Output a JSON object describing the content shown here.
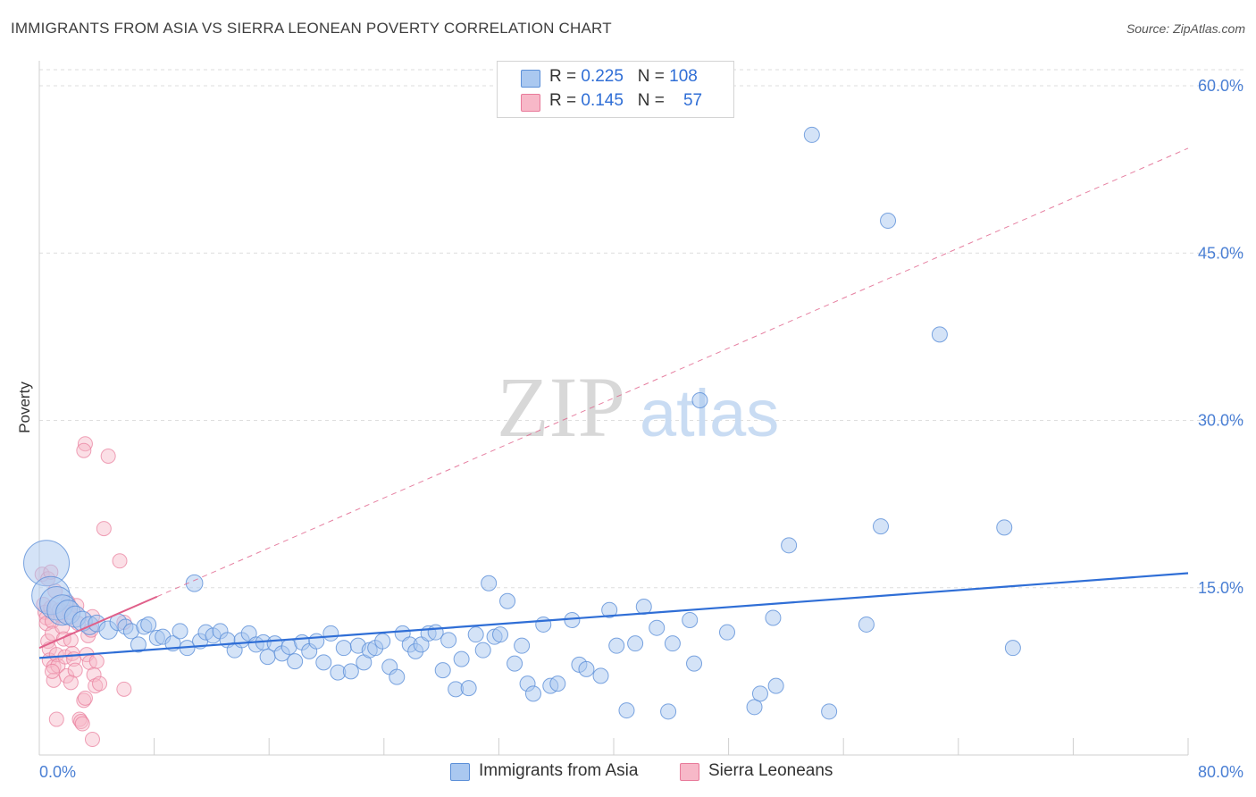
{
  "title": "IMMIGRANTS FROM ASIA VS SIERRA LEONEAN POVERTY CORRELATION CHART",
  "source": "Source: ZipAtlas.com",
  "watermark": {
    "zip": "ZIP",
    "atlas": "atlas"
  },
  "legend_top": {
    "row1": {
      "r_label": "R = ",
      "r_value": "0.225",
      "n_label": "N = ",
      "n_value": "108"
    },
    "row2": {
      "r_label": "R = ",
      "r_value": "0.145",
      "n_label": "N = ",
      "n_value": "57"
    }
  },
  "legend_bottom": {
    "series1": "Immigrants from Asia",
    "series2": "Sierra Leoneans"
  },
  "colors": {
    "blue_fill": "#aac8f0",
    "blue_stroke": "#5b8fd8",
    "blue_line": "#2f6ed6",
    "pink_fill": "#f7b8c8",
    "pink_stroke": "#e87a9a",
    "pink_line": "#e0608a",
    "tick_text": "#4a7fd4"
  },
  "chart_data": {
    "type": "scatter",
    "title": "IMMIGRANTS FROM ASIA VS SIERRA LEONEAN POVERTY CORRELATION CHART",
    "xlabel": "",
    "ylabel": "Poverty",
    "xlim": [
      0,
      80
    ],
    "ylim": [
      0,
      60
    ],
    "x_tick_labels": [
      "0.0%",
      "80.0%"
    ],
    "y_ticks": [
      15,
      30,
      45,
      60
    ],
    "y_tick_labels": [
      "15.0%",
      "30.0%",
      "45.0%",
      "60.0%"
    ],
    "series": [
      {
        "name": "Immigrants from Asia",
        "r": 0.225,
        "n": 108,
        "trend": {
          "x": [
            0,
            80
          ],
          "y": [
            8.7,
            16.3
          ],
          "style": "solid"
        },
        "points": [
          [
            0.5,
            17.2,
            3
          ],
          [
            0.8,
            14.3,
            2.5
          ],
          [
            1.2,
            13.6,
            2.2
          ],
          [
            1.6,
            13.0,
            2
          ],
          [
            2.0,
            12.8,
            1.6
          ],
          [
            2.5,
            12.4,
            1.4
          ],
          [
            3.0,
            12.0,
            1.3
          ],
          [
            3.5,
            11.6,
            1.2
          ],
          [
            4.0,
            11.8,
            1.1
          ],
          [
            4.8,
            11.2,
            1.2
          ],
          [
            5.5,
            11.9,
            1.1
          ],
          [
            6.0,
            11.5,
            1
          ],
          [
            6.4,
            11.1,
            1
          ],
          [
            6.9,
            9.9,
            1
          ],
          [
            7.3,
            11.5,
            1
          ],
          [
            7.6,
            11.7,
            1
          ],
          [
            8.2,
            10.5,
            1
          ],
          [
            8.6,
            10.6,
            1
          ],
          [
            9.3,
            10.0,
            1
          ],
          [
            9.8,
            11.1,
            1
          ],
          [
            10.3,
            9.6,
            1
          ],
          [
            10.8,
            15.4,
            1.1
          ],
          [
            11.2,
            10.2,
            1
          ],
          [
            11.6,
            11.0,
            1
          ],
          [
            12.1,
            10.7,
            1
          ],
          [
            12.6,
            11.1,
            1
          ],
          [
            13.1,
            10.3,
            1
          ],
          [
            13.6,
            9.4,
            1
          ],
          [
            14.1,
            10.3,
            1
          ],
          [
            14.6,
            10.9,
            1
          ],
          [
            15.1,
            9.9,
            1
          ],
          [
            15.6,
            10.1,
            1
          ],
          [
            15.9,
            8.8,
            1
          ],
          [
            16.4,
            10.0,
            1
          ],
          [
            16.9,
            9.1,
            1
          ],
          [
            17.4,
            9.7,
            1
          ],
          [
            17.8,
            8.4,
            1
          ],
          [
            18.3,
            10.1,
            1
          ],
          [
            18.8,
            9.3,
            1
          ],
          [
            19.3,
            10.2,
            1
          ],
          [
            19.8,
            8.3,
            1
          ],
          [
            20.3,
            10.9,
            1
          ],
          [
            20.8,
            7.4,
            1
          ],
          [
            21.2,
            9.6,
            1
          ],
          [
            21.7,
            7.5,
            1
          ],
          [
            22.2,
            9.8,
            1
          ],
          [
            22.6,
            8.3,
            1
          ],
          [
            23.0,
            9.4,
            1
          ],
          [
            23.4,
            9.6,
            1
          ],
          [
            23.9,
            10.2,
            1
          ],
          [
            24.4,
            7.9,
            1
          ],
          [
            24.9,
            7.0,
            1
          ],
          [
            25.3,
            10.9,
            1
          ],
          [
            25.8,
            9.9,
            1
          ],
          [
            26.2,
            9.3,
            1
          ],
          [
            26.6,
            9.9,
            1
          ],
          [
            27.1,
            10.9,
            1
          ],
          [
            27.6,
            11.0,
            1
          ],
          [
            28.1,
            7.6,
            1
          ],
          [
            28.5,
            10.3,
            1
          ],
          [
            29.0,
            5.9,
            1
          ],
          [
            29.4,
            8.6,
            1
          ],
          [
            29.9,
            6.0,
            1
          ],
          [
            30.4,
            10.8,
            1
          ],
          [
            30.9,
            9.4,
            1
          ],
          [
            31.3,
            15.4,
            1
          ],
          [
            31.7,
            10.6,
            1
          ],
          [
            32.1,
            10.8,
            1
          ],
          [
            32.6,
            13.8,
            1
          ],
          [
            33.1,
            8.2,
            1
          ],
          [
            33.6,
            9.8,
            1
          ],
          [
            34.0,
            6.4,
            1
          ],
          [
            34.4,
            5.5,
            1
          ],
          [
            35.1,
            11.7,
            1
          ],
          [
            35.6,
            6.2,
            1
          ],
          [
            36.1,
            6.4,
            1
          ],
          [
            37.1,
            12.1,
            1
          ],
          [
            37.6,
            8.1,
            1
          ],
          [
            38.1,
            7.7,
            1
          ],
          [
            39.1,
            7.1,
            1
          ],
          [
            39.7,
            13.0,
            1
          ],
          [
            40.2,
            9.8,
            1
          ],
          [
            40.9,
            4.0,
            1
          ],
          [
            41.5,
            10.0,
            1
          ],
          [
            42.1,
            13.3,
            1
          ],
          [
            43.0,
            11.4,
            1
          ],
          [
            43.8,
            3.9,
            1
          ],
          [
            44.1,
            10.0,
            1
          ],
          [
            45.3,
            12.1,
            1
          ],
          [
            45.6,
            8.2,
            1
          ],
          [
            46.0,
            31.8,
            1
          ],
          [
            47.9,
            11.0,
            1
          ],
          [
            49.8,
            4.3,
            1
          ],
          [
            50.2,
            5.5,
            1
          ],
          [
            51.1,
            12.3,
            1
          ],
          [
            51.3,
            6.2,
            1
          ],
          [
            52.2,
            18.8,
            1
          ],
          [
            53.8,
            55.6,
            1
          ],
          [
            55.0,
            3.9,
            1
          ],
          [
            57.6,
            11.7,
            1
          ],
          [
            58.6,
            20.5,
            1
          ],
          [
            59.1,
            47.9,
            1
          ],
          [
            62.7,
            37.7,
            1
          ],
          [
            67.2,
            20.4,
            1
          ],
          [
            67.8,
            9.6,
            1
          ]
        ]
      },
      {
        "name": "Sierra Leoneans",
        "r": 0.145,
        "n": 57,
        "trend_solid": {
          "x": [
            0,
            8.2
          ],
          "y": [
            9.6,
            14.2
          ]
        },
        "trend_dashed": {
          "x": [
            8.2,
            80
          ],
          "y": [
            14.2,
            54.4
          ]
        },
        "points": [
          [
            0.2,
            16.2
          ],
          [
            0.3,
            13.5
          ],
          [
            0.4,
            12.8
          ],
          [
            0.5,
            12.3
          ],
          [
            0.5,
            11.8
          ],
          [
            0.6,
            15.8
          ],
          [
            0.6,
            10.2
          ],
          [
            0.7,
            9.5
          ],
          [
            0.7,
            8.5
          ],
          [
            0.8,
            16.4
          ],
          [
            0.8,
            13.2
          ],
          [
            0.9,
            12.0
          ],
          [
            0.9,
            10.9
          ],
          [
            1.0,
            7.9
          ],
          [
            1.0,
            6.7
          ],
          [
            1.1,
            14.7
          ],
          [
            1.2,
            9.0
          ],
          [
            1.3,
            8.0
          ],
          [
            1.4,
            13.0
          ],
          [
            1.5,
            12.5
          ],
          [
            1.6,
            11.5
          ],
          [
            1.7,
            10.4
          ],
          [
            1.8,
            8.8
          ],
          [
            1.9,
            7.1
          ],
          [
            2.0,
            13.7
          ],
          [
            2.1,
            12.8
          ],
          [
            2.2,
            10.3
          ],
          [
            2.3,
            9.1
          ],
          [
            2.4,
            8.6
          ],
          [
            2.5,
            7.6
          ],
          [
            2.6,
            13.4
          ],
          [
            2.7,
            11.8
          ],
          [
            2.8,
            3.2
          ],
          [
            2.9,
            3.0
          ],
          [
            3.0,
            2.8
          ],
          [
            3.1,
            4.9
          ],
          [
            3.2,
            5.1
          ],
          [
            3.3,
            9.0
          ],
          [
            3.4,
            10.7
          ],
          [
            3.5,
            8.3
          ],
          [
            3.6,
            11.2
          ],
          [
            3.7,
            12.4
          ],
          [
            3.8,
            7.2
          ],
          [
            3.9,
            6.2
          ],
          [
            4.0,
            8.4
          ],
          [
            3.2,
            27.9
          ],
          [
            3.1,
            27.3
          ],
          [
            4.8,
            26.8
          ],
          [
            4.5,
            20.3
          ],
          [
            5.6,
            17.4
          ],
          [
            5.9,
            11.9
          ],
          [
            3.7,
            1.4
          ],
          [
            4.2,
            6.4
          ],
          [
            5.9,
            5.9
          ],
          [
            1.2,
            3.2
          ],
          [
            0.9,
            7.5
          ],
          [
            2.2,
            6.5
          ]
        ]
      }
    ]
  }
}
